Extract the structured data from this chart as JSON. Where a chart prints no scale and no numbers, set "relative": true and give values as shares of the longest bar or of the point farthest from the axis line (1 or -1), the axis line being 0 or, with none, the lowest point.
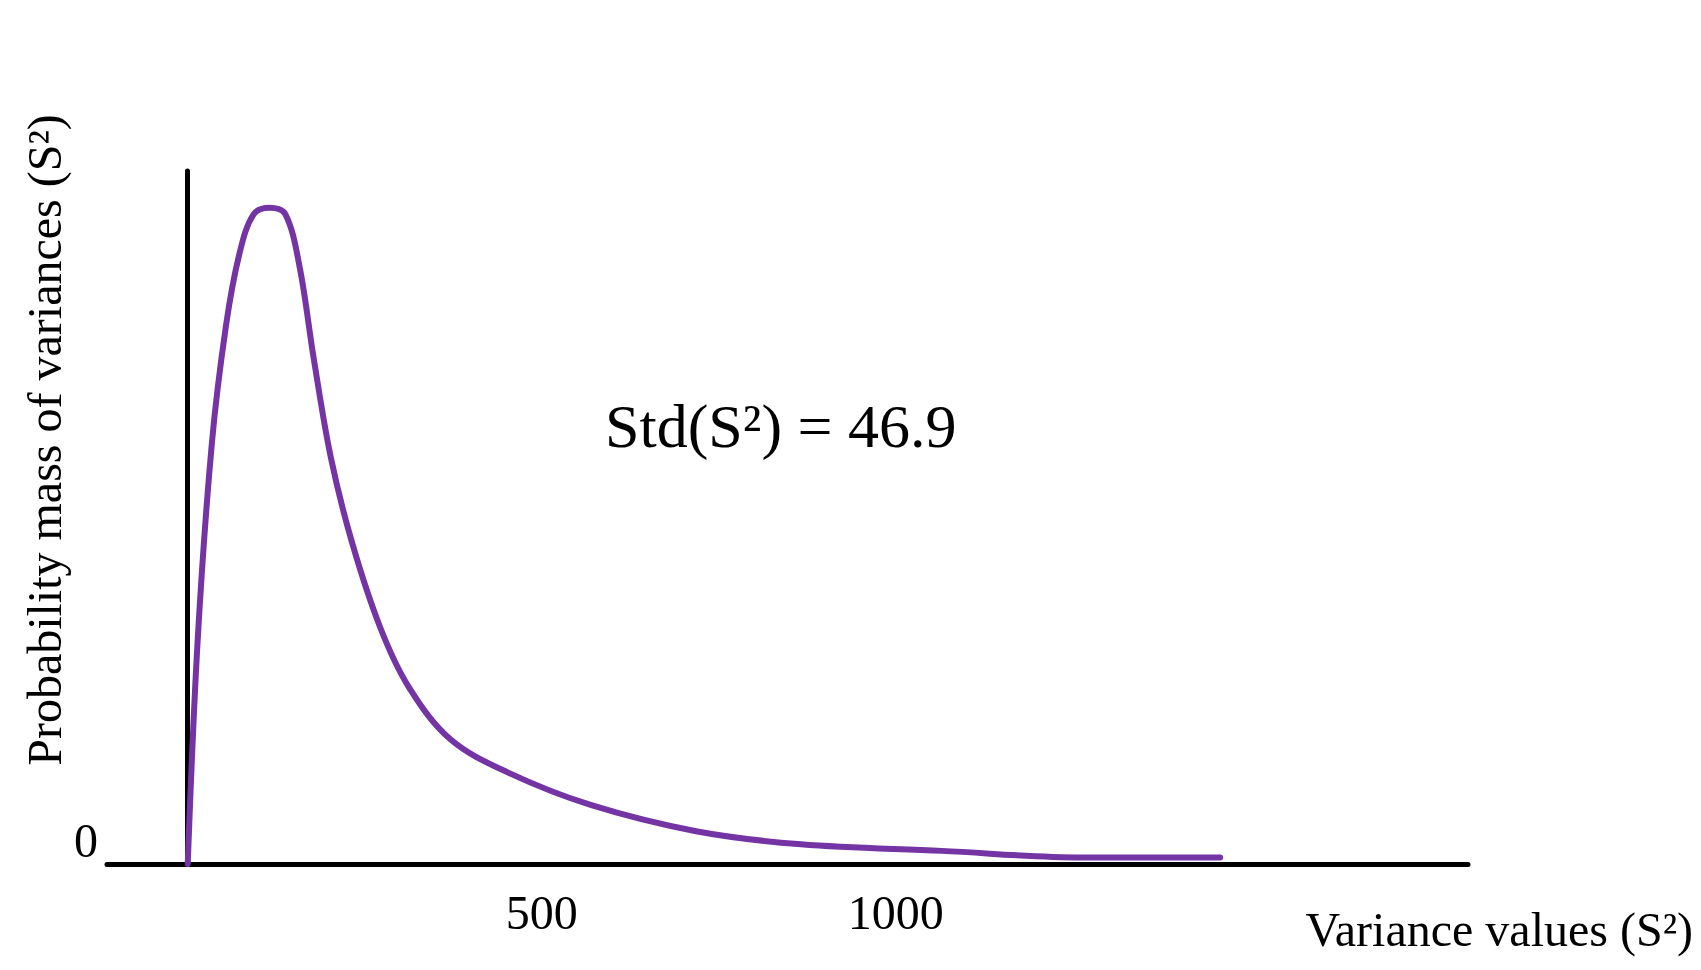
{
  "chart_data": {
    "type": "line",
    "xlabel": "Variance values (S²)",
    "ylabel": "Probability mass of variances (S²)",
    "relative": true,
    "xlim": [
      -114,
      1808
    ],
    "xticks": [
      500,
      1000
    ],
    "grid": false,
    "marker": "none",
    "line_style": "solid",
    "annotations": [
      "Std(S²) = 46.9",
      "0"
    ],
    "series": [
      {
        "color": "#7434a4",
        "x": [
          0,
          14,
          34,
          54,
          73,
          93,
          116,
          138,
          158,
          178,
          202,
          232,
          272,
          312,
          371,
          451,
          569,
          718,
          866,
          1065,
          1263,
          1458
        ],
        "values": [
          0,
          0.34,
          0.64,
          0.82,
          0.93,
          0.99,
          1,
          0.99,
          0.91,
          0.77,
          0.62,
          0.49,
          0.36,
          0.27,
          0.19,
          0.14,
          0.09,
          0.05,
          0.03,
          0.02,
          0.01,
          0.01
        ]
      }
    ]
  }
}
